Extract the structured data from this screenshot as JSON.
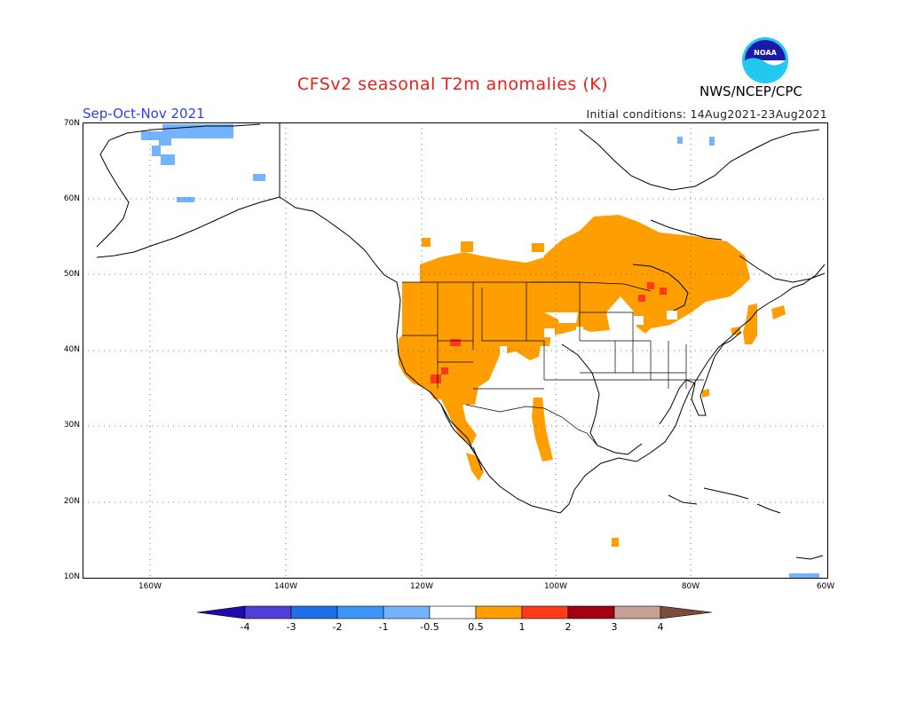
{
  "header": {
    "title": "CFSv2 seasonal T2m anomalies (K)",
    "season": "Sep-Oct-Nov 2021",
    "initial_conditions": "Initial conditions: 14Aug2021-23Aug2021",
    "org": "NWS/NCEP/CPC",
    "logo_text": "NOAA"
  },
  "map": {
    "lat_labels": [
      "70N",
      "60N",
      "50N",
      "40N",
      "30N",
      "20N",
      "10N"
    ],
    "lon_labels": [
      "160W",
      "140W",
      "120W",
      "100W",
      "80W",
      "60W"
    ],
    "colors": {
      "warm_anomaly": "#ff9e00",
      "strong_warm_anomaly": "#ff3a1a",
      "cool_anomaly": "#74b4ff",
      "coastline": "#000000",
      "grid": "#555555"
    }
  },
  "colorbar": {
    "labels": [
      "-4",
      "-3",
      "-2",
      "-1",
      "-0.5",
      "0.5",
      "1",
      "2",
      "3",
      "4"
    ],
    "colors": [
      "#1e08b0",
      "#4f3fd6",
      "#1f6fe8",
      "#3d96f5",
      "#74b4ff",
      "#ffffff",
      "#ff9e00",
      "#ff3a1a",
      "#a3000f",
      "#c8a093",
      "#7a4d3b"
    ]
  }
}
